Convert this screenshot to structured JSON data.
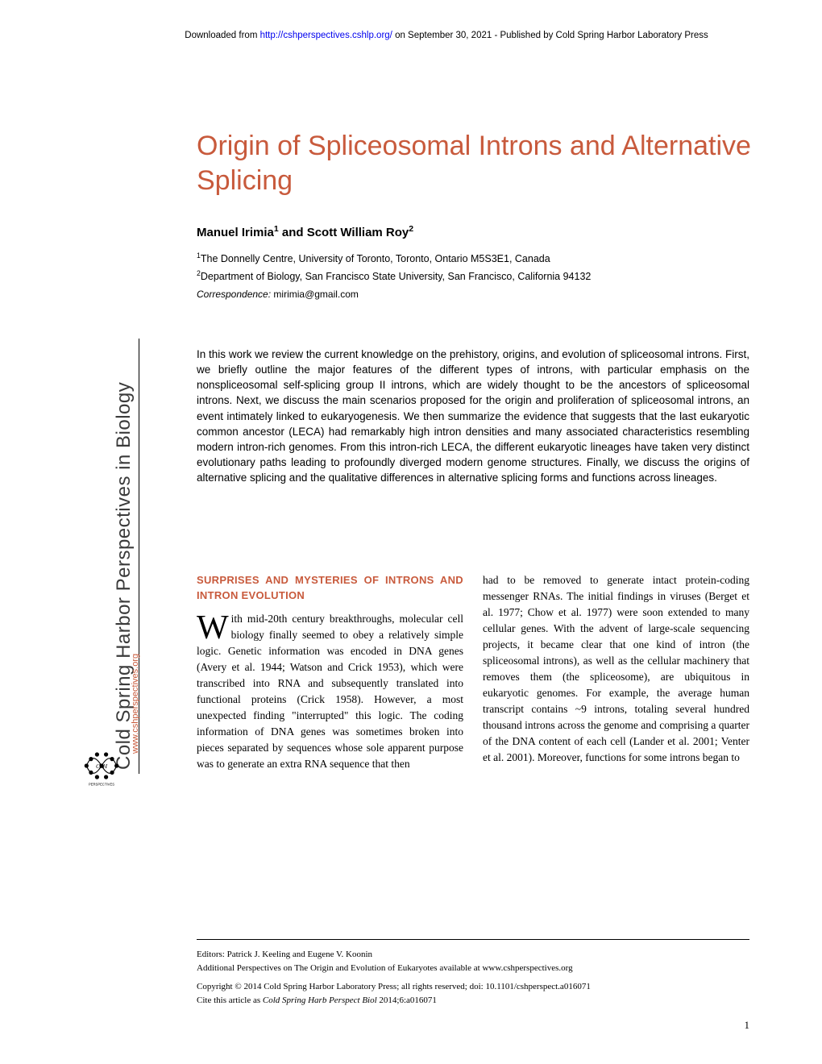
{
  "header": {
    "download_prefix": "Downloaded from ",
    "download_url": "http://cshperspectives.cshlp.org/",
    "download_suffix": " on September 30, 2021 - Published by Cold Spring Harbor Laboratory Press"
  },
  "title": "Origin of Spliceosomal Introns and Alternative Splicing",
  "authors_html": "Manuel Irimia<sup>1</sup> and Scott William Roy<sup>2</sup>",
  "affiliations": [
    "<sup>1</sup>The Donnelly Centre, University of Toronto, Toronto, Ontario M5S3E1, Canada",
    "<sup>2</sup>Department of Biology, San Francisco State University, San Francisco, California 94132"
  ],
  "correspondence_label": "Correspondence:",
  "correspondence_email": "mirimia@gmail.com",
  "abstract": "In this work we review the current knowledge on the prehistory, origins, and evolution of spliceosomal introns. First, we briefly outline the major features of the different types of introns, with particular emphasis on the nonspliceosomal self-splicing group II introns, which are widely thought to be the ancestors of spliceosomal introns. Next, we discuss the main scenarios proposed for the origin and proliferation of spliceosomal introns, an event intimately linked to eukaryogenesis. We then summarize the evidence that suggests that the last eukaryotic common ancestor (LECA) had remarkably high intron densities and many associated characteristics resembling modern intron-rich genomes. From this intron-rich LECA, the different eukaryotic lineages have taken very distinct evolutionary paths leading to profoundly diverged modern genome structures. Finally, we discuss the origins of alternative splicing and the qualitative differences in alternative splicing forms and functions across lineages.",
  "section_heading": "SURPRISES AND MYSTERIES OF INTRONS AND INTRON EVOLUTION",
  "body": {
    "col1_dropcap": "W",
    "col1": "ith mid-20th century breakthroughs, molecular cell biology finally seemed to obey a relatively simple logic. Genetic information was encoded in DNA genes (Avery et al. 1944; Watson and Crick 1953), which were transcribed into RNA and subsequently translated into functional proteins (Crick 1958). However, a most unexpected finding \"interrupted\" this logic. The coding information of DNA genes was sometimes broken into pieces separated by sequences whose sole apparent purpose was to generate an extra RNA sequence that then",
    "col2": "had to be removed to generate intact protein-coding messenger RNAs. The initial findings in viruses (Berget et al. 1977; Chow et al. 1977) were soon extended to many cellular genes. With the advent of large-scale sequencing projects, it became clear that one kind of intron (the spliceosomal introns), as well as the cellular machinery that removes them (the spliceosome), are ubiquitous in eukaryotic genomes. For example, the average human transcript contains ~9 introns, totaling several hundred thousand introns across the genome and comprising a quarter of the DNA content of each cell (Lander et al. 2001; Venter et al. 2001). Moreover, functions for some introns began to"
  },
  "sidebar": {
    "big_text": "Cold Spring Harbor Perspectives in Biology",
    "small_text": "www.cshperspectives.org",
    "logo_label": "CSH PERSPECTIVES"
  },
  "footer": {
    "editors": "Editors: Patrick J. Keeling and Eugene V. Koonin",
    "additional": "Additional Perspectives on The Origin and Evolution of Eukaryotes available at www.cshperspectives.org",
    "copyright": "Copyright © 2014 Cold Spring Harbor Laboratory Press; all rights reserved; doi: 10.1101/cshperspect.a016071",
    "cite": "Cite this article as <i>Cold Spring Harb Perspect Biol</i> 2014;6:a016071"
  },
  "page_number": "1",
  "colors": {
    "accent": "#c85a3c",
    "link": "#0000ee",
    "text": "#000000",
    "sidebar_big": "#3b3b3b"
  }
}
